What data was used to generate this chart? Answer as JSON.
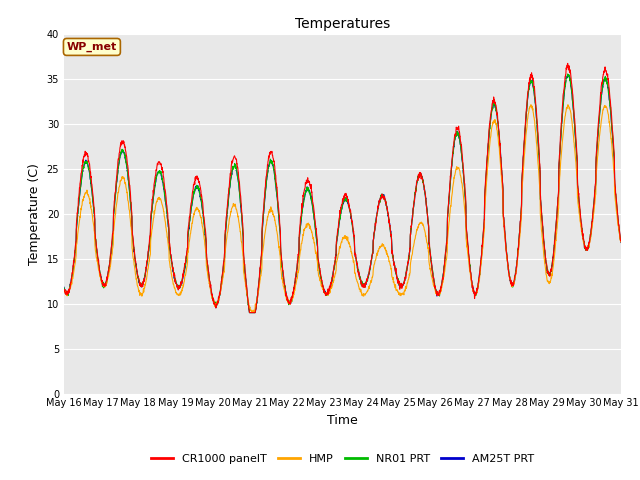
{
  "title": "Temperatures",
  "xlabel": "Time",
  "ylabel": "Temperature (C)",
  "ylim": [
    0,
    40
  ],
  "yticks": [
    0,
    5,
    10,
    15,
    20,
    25,
    30,
    35,
    40
  ],
  "plot_bg": "#e8e8e8",
  "fig_bg": "#ffffff",
  "legend_labels": [
    "CR1000 panelT",
    "HMP",
    "NR01 PRT",
    "AM25T PRT"
  ],
  "legend_colors": [
    "#ff0000",
    "#ffa500",
    "#00bb00",
    "#0000cc"
  ],
  "annotation_text": "WP_met",
  "annotation_bg": "#ffffcc",
  "annotation_border": "#aa6600",
  "annotation_text_color": "#880000",
  "x_tick_labels": [
    "May 16",
    "May 17",
    "May 18",
    "May 19",
    "May 20",
    "May 21",
    "May 22",
    "May 23",
    "May 24",
    "May 25",
    "May 26",
    "May 27",
    "May 28",
    "May 29",
    "May 30",
    "May 31"
  ],
  "figsize": [
    6.4,
    4.8
  ],
  "dpi": 100,
  "day_peaks_red": [
    25,
    28,
    28,
    24,
    24,
    28,
    26,
    22,
    22,
    22,
    26,
    32,
    33,
    37,
    36
  ],
  "day_peaks_blue": [
    24,
    27,
    27,
    23,
    23,
    27,
    25,
    21,
    22,
    22,
    26,
    31,
    33,
    36,
    35
  ],
  "day_mins": [
    11,
    12,
    12,
    12,
    10,
    8,
    10,
    11,
    12,
    12,
    11,
    11,
    12,
    13,
    16
  ],
  "day_mins_orange": [
    11,
    12,
    11,
    11,
    10,
    9,
    10,
    11,
    11,
    11,
    11,
    11,
    12,
    12,
    16
  ],
  "day_peaks_orange": [
    20,
    24,
    24,
    20,
    21,
    21,
    20,
    18,
    17,
    16,
    21,
    28,
    32,
    32,
    32
  ]
}
